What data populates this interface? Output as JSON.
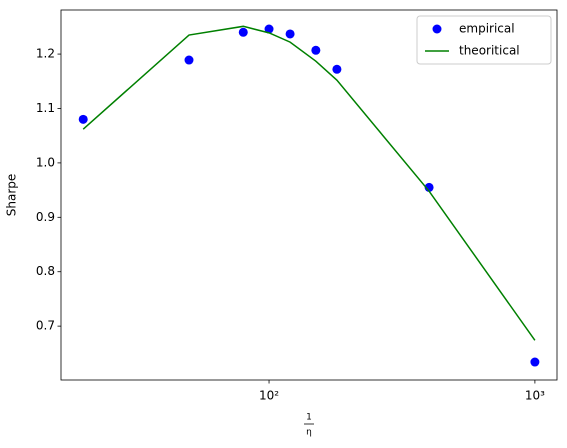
{
  "chart_data": {
    "type": "scatter_line",
    "xlabel": {
      "numerator": "1",
      "denominator": "η"
    },
    "ylabel": "Sharpe",
    "x": [
      20,
      50,
      80,
      100,
      120,
      150,
      180,
      400,
      1000
    ],
    "series": [
      {
        "name": "empirical",
        "kind": "scatter",
        "color": "#0000ff",
        "values": [
          1.08,
          1.189,
          1.24,
          1.246,
          1.237,
          1.207,
          1.172,
          0.955,
          0.634
        ]
      },
      {
        "name": "theoritical",
        "kind": "line",
        "color": "#008000",
        "values": [
          1.062,
          1.235,
          1.251,
          1.239,
          1.222,
          1.187,
          1.152,
          0.948,
          0.674
        ]
      }
    ],
    "xscale": "log",
    "xlim": [
      16.5,
      1211
    ],
    "xticks": [
      {
        "value": 100,
        "label": "10²"
      },
      {
        "value": 1000,
        "label": "10³"
      }
    ],
    "ylim": [
      0.601,
      1.281
    ],
    "yticks": [
      0.7,
      0.8,
      0.9,
      {
        "value": 1.0,
        "label": "1.0"
      },
      1.1,
      1.2
    ],
    "legend": "upper right"
  }
}
